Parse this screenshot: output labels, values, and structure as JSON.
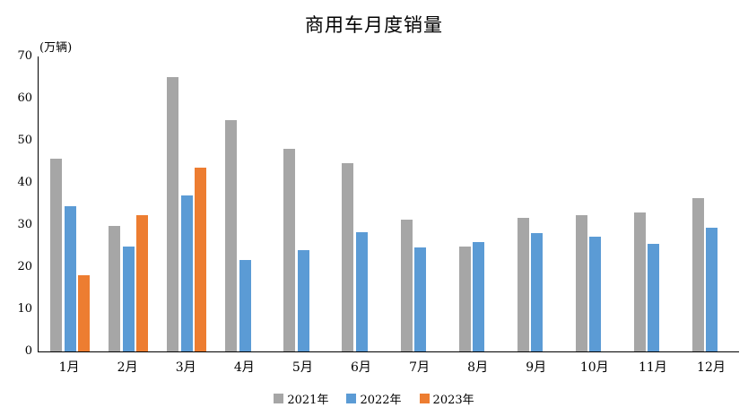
{
  "chart_data": {
    "type": "bar",
    "title": "商用车月度销量",
    "axis_unit_label": "(万辆)",
    "xlabel": "",
    "ylabel": "万辆",
    "categories": [
      "1月",
      "2月",
      "3月",
      "4月",
      "5月",
      "6月",
      "7月",
      "8月",
      "9月",
      "10月",
      "11月",
      "12月"
    ],
    "series": [
      {
        "name": "2021年",
        "color": "#a6a6a6",
        "values": [
          45.8,
          29.8,
          65.2,
          55.0,
          48.1,
          44.6,
          31.2,
          24.9,
          31.7,
          32.4,
          33.0,
          36.4
        ]
      },
      {
        "name": "2022年",
        "color": "#5b9bd5",
        "values": [
          34.5,
          25.0,
          37.0,
          21.7,
          24.0,
          28.2,
          24.6,
          25.9,
          28.0,
          27.3,
          25.5,
          29.3
        ]
      },
      {
        "name": "2023年",
        "color": "#ed7d31",
        "values": [
          18.1,
          32.4,
          43.6,
          null,
          null,
          null,
          null,
          null,
          null,
          null,
          null,
          null
        ]
      }
    ],
    "ylim": [
      0,
      70
    ],
    "ytick_step": 10,
    "grid": false,
    "legend_position": "bottom",
    "background_color": "#ffffff",
    "axis_color": "#000000"
  }
}
